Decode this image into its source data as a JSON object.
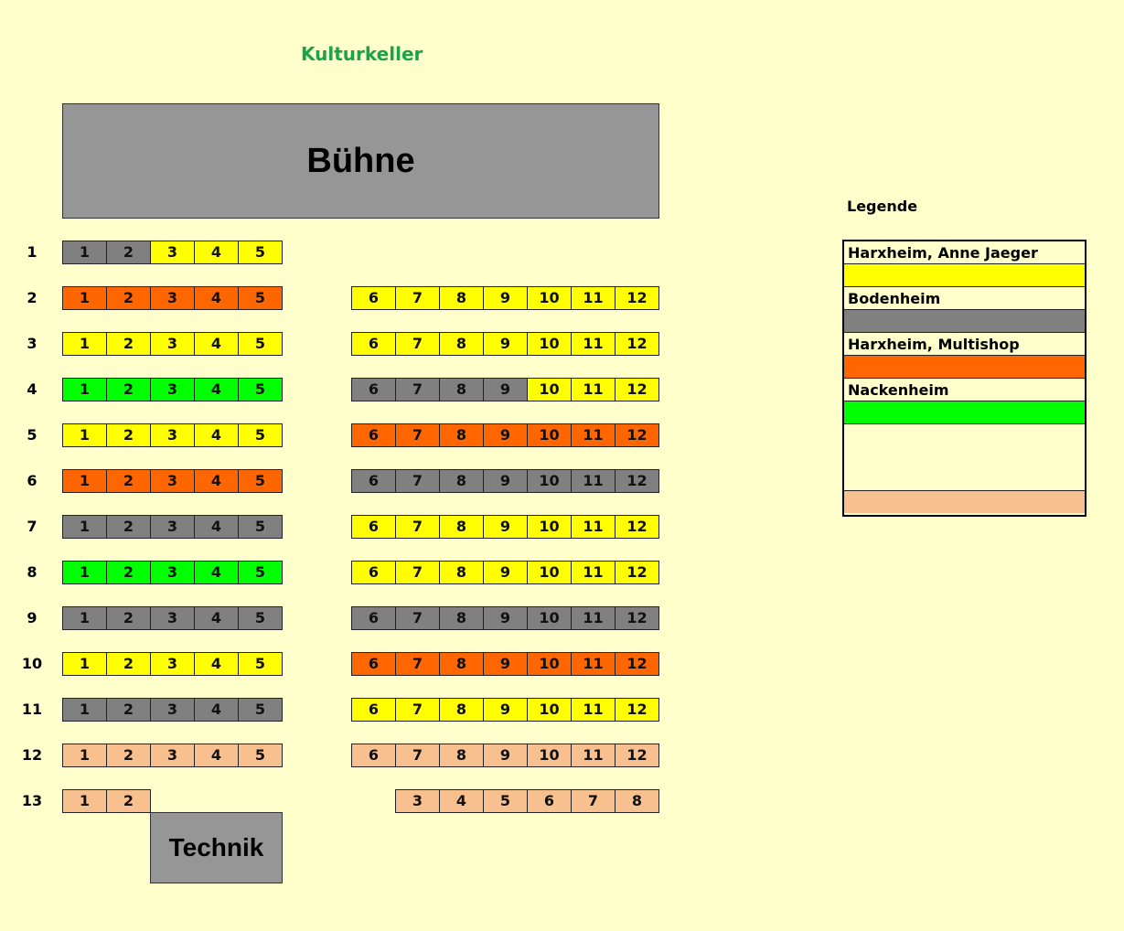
{
  "title": "Kulturkeller",
  "stage_label": "Bühne",
  "technik_label": "Technik",
  "colors": {
    "Y": "#ffff00",
    "G": "#808080",
    "O": "#ff6600",
    "N": "#00ff00",
    "P": "#f8bf8f"
  },
  "rows": [
    {
      "label": "1",
      "left": [
        [
          1,
          "G"
        ],
        [
          2,
          "G"
        ],
        [
          3,
          "Y"
        ],
        [
          4,
          "Y"
        ],
        [
          5,
          "Y"
        ]
      ],
      "right": []
    },
    {
      "label": "2",
      "left": [
        [
          1,
          "O"
        ],
        [
          2,
          "O"
        ],
        [
          3,
          "O"
        ],
        [
          4,
          "O"
        ],
        [
          5,
          "O"
        ]
      ],
      "right": [
        [
          6,
          "Y"
        ],
        [
          7,
          "Y"
        ],
        [
          8,
          "Y"
        ],
        [
          9,
          "Y"
        ],
        [
          10,
          "Y"
        ],
        [
          11,
          "Y"
        ],
        [
          12,
          "Y"
        ]
      ]
    },
    {
      "label": "3",
      "left": [
        [
          1,
          "Y"
        ],
        [
          2,
          "Y"
        ],
        [
          3,
          "Y"
        ],
        [
          4,
          "Y"
        ],
        [
          5,
          "Y"
        ]
      ],
      "right": [
        [
          6,
          "Y"
        ],
        [
          7,
          "Y"
        ],
        [
          8,
          "Y"
        ],
        [
          9,
          "Y"
        ],
        [
          10,
          "Y"
        ],
        [
          11,
          "Y"
        ],
        [
          12,
          "Y"
        ]
      ]
    },
    {
      "label": "4",
      "left": [
        [
          1,
          "N"
        ],
        [
          2,
          "N"
        ],
        [
          3,
          "N"
        ],
        [
          4,
          "N"
        ],
        [
          5,
          "N"
        ]
      ],
      "right": [
        [
          6,
          "G"
        ],
        [
          7,
          "G"
        ],
        [
          8,
          "G"
        ],
        [
          9,
          "G"
        ],
        [
          10,
          "Y"
        ],
        [
          11,
          "Y"
        ],
        [
          12,
          "Y"
        ]
      ]
    },
    {
      "label": "5",
      "left": [
        [
          1,
          "Y"
        ],
        [
          2,
          "Y"
        ],
        [
          3,
          "Y"
        ],
        [
          4,
          "Y"
        ],
        [
          5,
          "Y"
        ]
      ],
      "right": [
        [
          6,
          "O"
        ],
        [
          7,
          "O"
        ],
        [
          8,
          "O"
        ],
        [
          9,
          "O"
        ],
        [
          10,
          "O"
        ],
        [
          11,
          "O"
        ],
        [
          12,
          "O"
        ]
      ]
    },
    {
      "label": "6",
      "left": [
        [
          1,
          "O"
        ],
        [
          2,
          "O"
        ],
        [
          3,
          "O"
        ],
        [
          4,
          "O"
        ],
        [
          5,
          "O"
        ]
      ],
      "right": [
        [
          6,
          "G"
        ],
        [
          7,
          "G"
        ],
        [
          8,
          "G"
        ],
        [
          9,
          "G"
        ],
        [
          10,
          "G"
        ],
        [
          11,
          "G"
        ],
        [
          12,
          "G"
        ]
      ]
    },
    {
      "label": "7",
      "left": [
        [
          1,
          "G"
        ],
        [
          2,
          "G"
        ],
        [
          3,
          "G"
        ],
        [
          4,
          "G"
        ],
        [
          5,
          "G"
        ]
      ],
      "right": [
        [
          6,
          "Y"
        ],
        [
          7,
          "Y"
        ],
        [
          8,
          "Y"
        ],
        [
          9,
          "Y"
        ],
        [
          10,
          "Y"
        ],
        [
          11,
          "Y"
        ],
        [
          12,
          "Y"
        ]
      ]
    },
    {
      "label": "8",
      "left": [
        [
          1,
          "N"
        ],
        [
          2,
          "N"
        ],
        [
          3,
          "N"
        ],
        [
          4,
          "N"
        ],
        [
          5,
          "N"
        ]
      ],
      "right": [
        [
          6,
          "Y"
        ],
        [
          7,
          "Y"
        ],
        [
          8,
          "Y"
        ],
        [
          9,
          "Y"
        ],
        [
          10,
          "Y"
        ],
        [
          11,
          "Y"
        ],
        [
          12,
          "Y"
        ]
      ]
    },
    {
      "label": "9",
      "left": [
        [
          1,
          "G"
        ],
        [
          2,
          "G"
        ],
        [
          3,
          "G"
        ],
        [
          4,
          "G"
        ],
        [
          5,
          "G"
        ]
      ],
      "right": [
        [
          6,
          "G"
        ],
        [
          7,
          "G"
        ],
        [
          8,
          "G"
        ],
        [
          9,
          "G"
        ],
        [
          10,
          "G"
        ],
        [
          11,
          "G"
        ],
        [
          12,
          "G"
        ]
      ]
    },
    {
      "label": "10",
      "left": [
        [
          1,
          "Y"
        ],
        [
          2,
          "Y"
        ],
        [
          3,
          "Y"
        ],
        [
          4,
          "Y"
        ],
        [
          5,
          "Y"
        ]
      ],
      "right": [
        [
          6,
          "O"
        ],
        [
          7,
          "O"
        ],
        [
          8,
          "O"
        ],
        [
          9,
          "O"
        ],
        [
          10,
          "O"
        ],
        [
          11,
          "O"
        ],
        [
          12,
          "O"
        ]
      ]
    },
    {
      "label": "11",
      "left": [
        [
          1,
          "G"
        ],
        [
          2,
          "G"
        ],
        [
          3,
          "G"
        ],
        [
          4,
          "G"
        ],
        [
          5,
          "G"
        ]
      ],
      "right": [
        [
          6,
          "Y"
        ],
        [
          7,
          "Y"
        ],
        [
          8,
          "Y"
        ],
        [
          9,
          "Y"
        ],
        [
          10,
          "Y"
        ],
        [
          11,
          "Y"
        ],
        [
          12,
          "Y"
        ]
      ]
    },
    {
      "label": "12",
      "left": [
        [
          1,
          "P"
        ],
        [
          2,
          "P"
        ],
        [
          3,
          "P"
        ],
        [
          4,
          "P"
        ],
        [
          5,
          "P"
        ]
      ],
      "right": [
        [
          6,
          "P"
        ],
        [
          7,
          "P"
        ],
        [
          8,
          "P"
        ],
        [
          9,
          "P"
        ],
        [
          10,
          "P"
        ],
        [
          11,
          "P"
        ],
        [
          12,
          "P"
        ]
      ]
    },
    {
      "label": "13",
      "left": [
        [
          1,
          "P"
        ],
        [
          2,
          "P"
        ]
      ],
      "right": [
        [
          3,
          "P"
        ],
        [
          4,
          "P"
        ],
        [
          5,
          "P"
        ],
        [
          6,
          "P"
        ],
        [
          7,
          "P"
        ],
        [
          8,
          "P"
        ]
      ]
    }
  ],
  "legend": {
    "title": "Legende",
    "entries": [
      {
        "label": "Harxheim, Anne Jaeger",
        "color": "Y"
      },
      {
        "label": "Bodenheim",
        "color": "G"
      },
      {
        "label": "Harxheim, Multishop",
        "color": "O"
      },
      {
        "label": "Nackenheim",
        "color": "N"
      },
      {
        "label": "",
        "color": ""
      },
      {
        "label": "",
        "color": "P"
      }
    ]
  }
}
